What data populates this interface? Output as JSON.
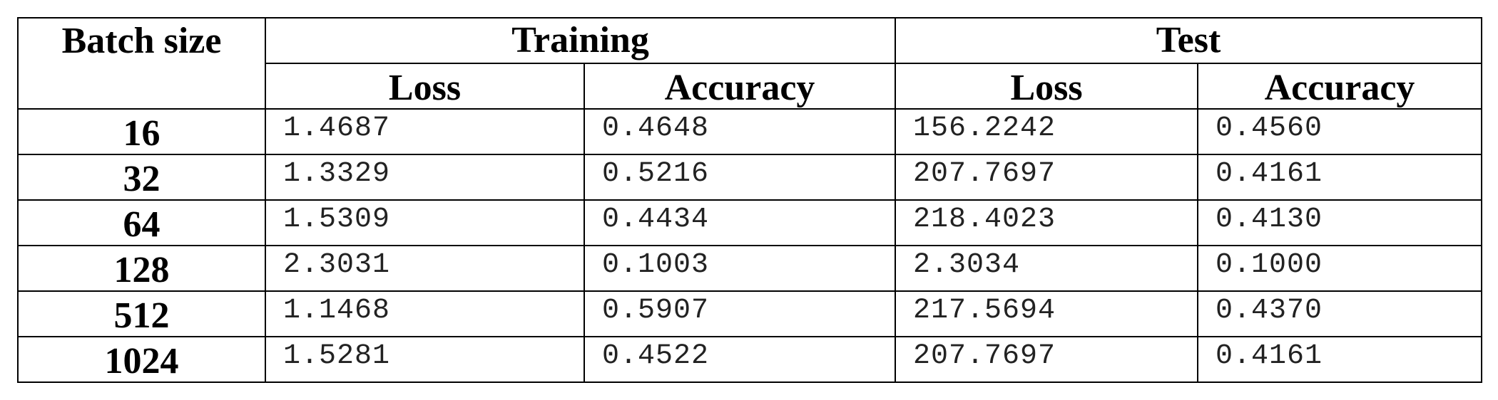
{
  "table": {
    "header": {
      "batch_size": "Batch size",
      "training": "Training",
      "test": "Test",
      "loss": "Loss",
      "accuracy": "Accuracy"
    },
    "rows": [
      {
        "batch_size": "16",
        "train_loss": "1.4687",
        "train_acc": "0.4648",
        "test_loss": "156.2242",
        "test_acc": "0.4560"
      },
      {
        "batch_size": "32",
        "train_loss": "1.3329",
        "train_acc": "0.5216",
        "test_loss": "207.7697",
        "test_acc": "0.4161"
      },
      {
        "batch_size": "64",
        "train_loss": "1.5309",
        "train_acc": "0.4434",
        "test_loss": "218.4023",
        "test_acc": "0.4130"
      },
      {
        "batch_size": "128",
        "train_loss": "2.3031",
        "train_acc": "0.1003",
        "test_loss": "2.3034",
        "test_acc": "0.1000"
      },
      {
        "batch_size": "512",
        "train_loss": "1.1468",
        "train_acc": "0.5907",
        "test_loss": "217.5694",
        "test_acc": "0.4370"
      },
      {
        "batch_size": "1024",
        "train_loss": "1.5281",
        "train_acc": "0.4522",
        "test_loss": "207.7697",
        "test_acc": "0.4161"
      }
    ]
  }
}
